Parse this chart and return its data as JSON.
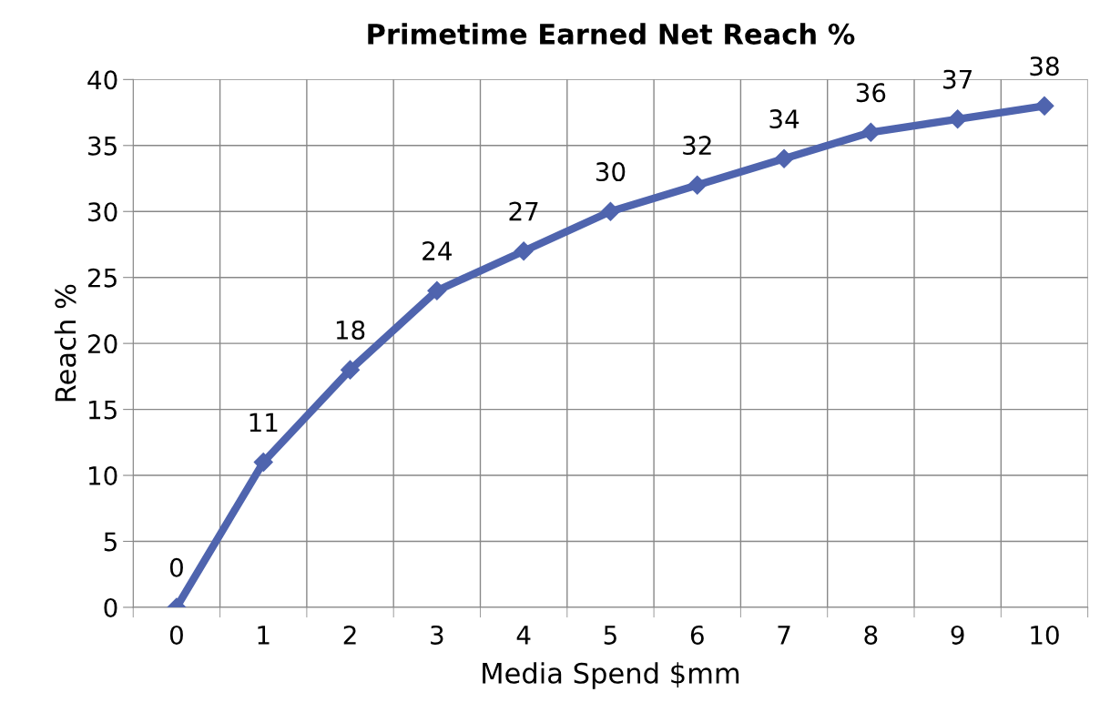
{
  "chart_data": {
    "type": "line",
    "title": "Primetime Earned Net Reach %",
    "xlabel": "Media Spend $mm",
    "ylabel": "Reach %",
    "categories": [
      "0",
      "1",
      "2",
      "3",
      "4",
      "5",
      "6",
      "7",
      "8",
      "9",
      "10"
    ],
    "series": [
      {
        "color": "#4f64ae",
        "values": [
          0,
          11,
          18,
          24,
          27,
          30,
          32,
          34,
          36,
          37,
          38
        ]
      }
    ],
    "ylim": [
      0,
      40
    ],
    "yticks": [
      0,
      5,
      10,
      15,
      20,
      25,
      30,
      35,
      40
    ],
    "grid": true,
    "marker": "diamond",
    "line_style": "solid",
    "data_labels": true,
    "legend": false
  }
}
